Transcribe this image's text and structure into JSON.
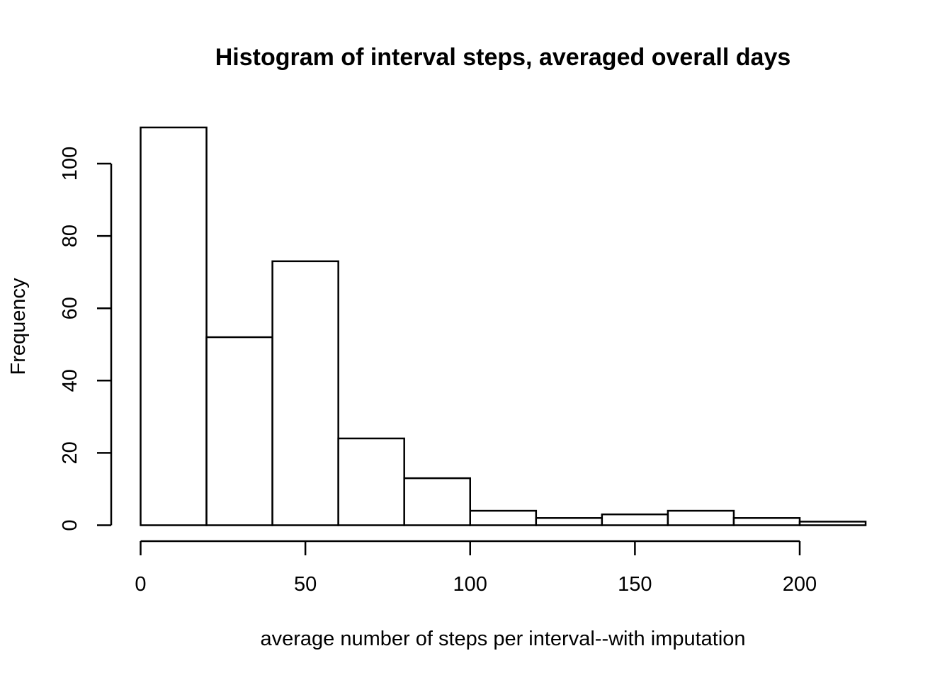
{
  "chart_data": {
    "type": "bar",
    "title": "Histogram of interval steps, averaged overall days",
    "xlabel": "average number of steps per interval--with imputation",
    "ylabel": "Frequency",
    "bins": [
      {
        "from": 0,
        "to": 20,
        "count": 110
      },
      {
        "from": 20,
        "to": 40,
        "count": 52
      },
      {
        "from": 40,
        "to": 60,
        "count": 73
      },
      {
        "from": 60,
        "to": 80,
        "count": 24
      },
      {
        "from": 80,
        "to": 100,
        "count": 13
      },
      {
        "from": 100,
        "to": 120,
        "count": 4
      },
      {
        "from": 120,
        "to": 140,
        "count": 2
      },
      {
        "from": 140,
        "to": 160,
        "count": 3
      },
      {
        "from": 160,
        "to": 180,
        "count": 4
      },
      {
        "from": 180,
        "to": 200,
        "count": 2
      },
      {
        "from": 200,
        "to": 220,
        "count": 1
      }
    ],
    "xticks": [
      0,
      50,
      100,
      150,
      200
    ],
    "yticks": [
      0,
      20,
      40,
      60,
      80,
      100
    ],
    "xlim": [
      0,
      200
    ],
    "ylim": [
      0,
      100
    ],
    "grid": false,
    "colors": {
      "bar_fill": "#ffffff",
      "bar_stroke": "#000000"
    }
  }
}
